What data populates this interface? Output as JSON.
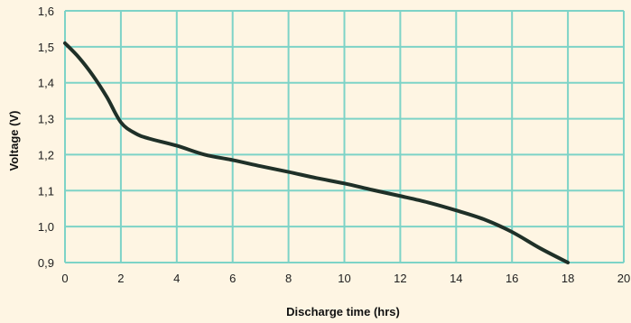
{
  "colors": {
    "background": "#fef5e3",
    "grid": "#7dd3c7",
    "line": "#1f3028",
    "text": "#1e1e1e"
  },
  "chart_data": {
    "type": "line",
    "xlabel": "Discharge time (hrs)",
    "ylabel": "Voltage (V)",
    "xlim": [
      0,
      20
    ],
    "ylim": [
      0.9,
      1.6
    ],
    "x_ticks": [
      "0",
      "2",
      "4",
      "6",
      "8",
      "10",
      "12",
      "14",
      "16",
      "18",
      "20"
    ],
    "y_ticks": [
      "0,9",
      "1,0",
      "1,1",
      "1,2",
      "1,3",
      "1,4",
      "1,5",
      "1,6"
    ],
    "grid": true,
    "legend": "none",
    "series": [
      {
        "x": [
          0,
          0.5,
          1,
          1.5,
          2,
          2.5,
          3,
          4,
          5,
          6,
          7,
          8,
          9,
          10,
          11,
          12,
          13,
          14,
          15,
          16,
          17,
          18
        ],
        "y": [
          1.51,
          1.47,
          1.42,
          1.36,
          1.29,
          1.26,
          1.245,
          1.225,
          1.2,
          1.185,
          1.168,
          1.152,
          1.135,
          1.12,
          1.102,
          1.085,
          1.067,
          1.045,
          1.02,
          0.985,
          0.94,
          0.9
        ]
      }
    ]
  }
}
